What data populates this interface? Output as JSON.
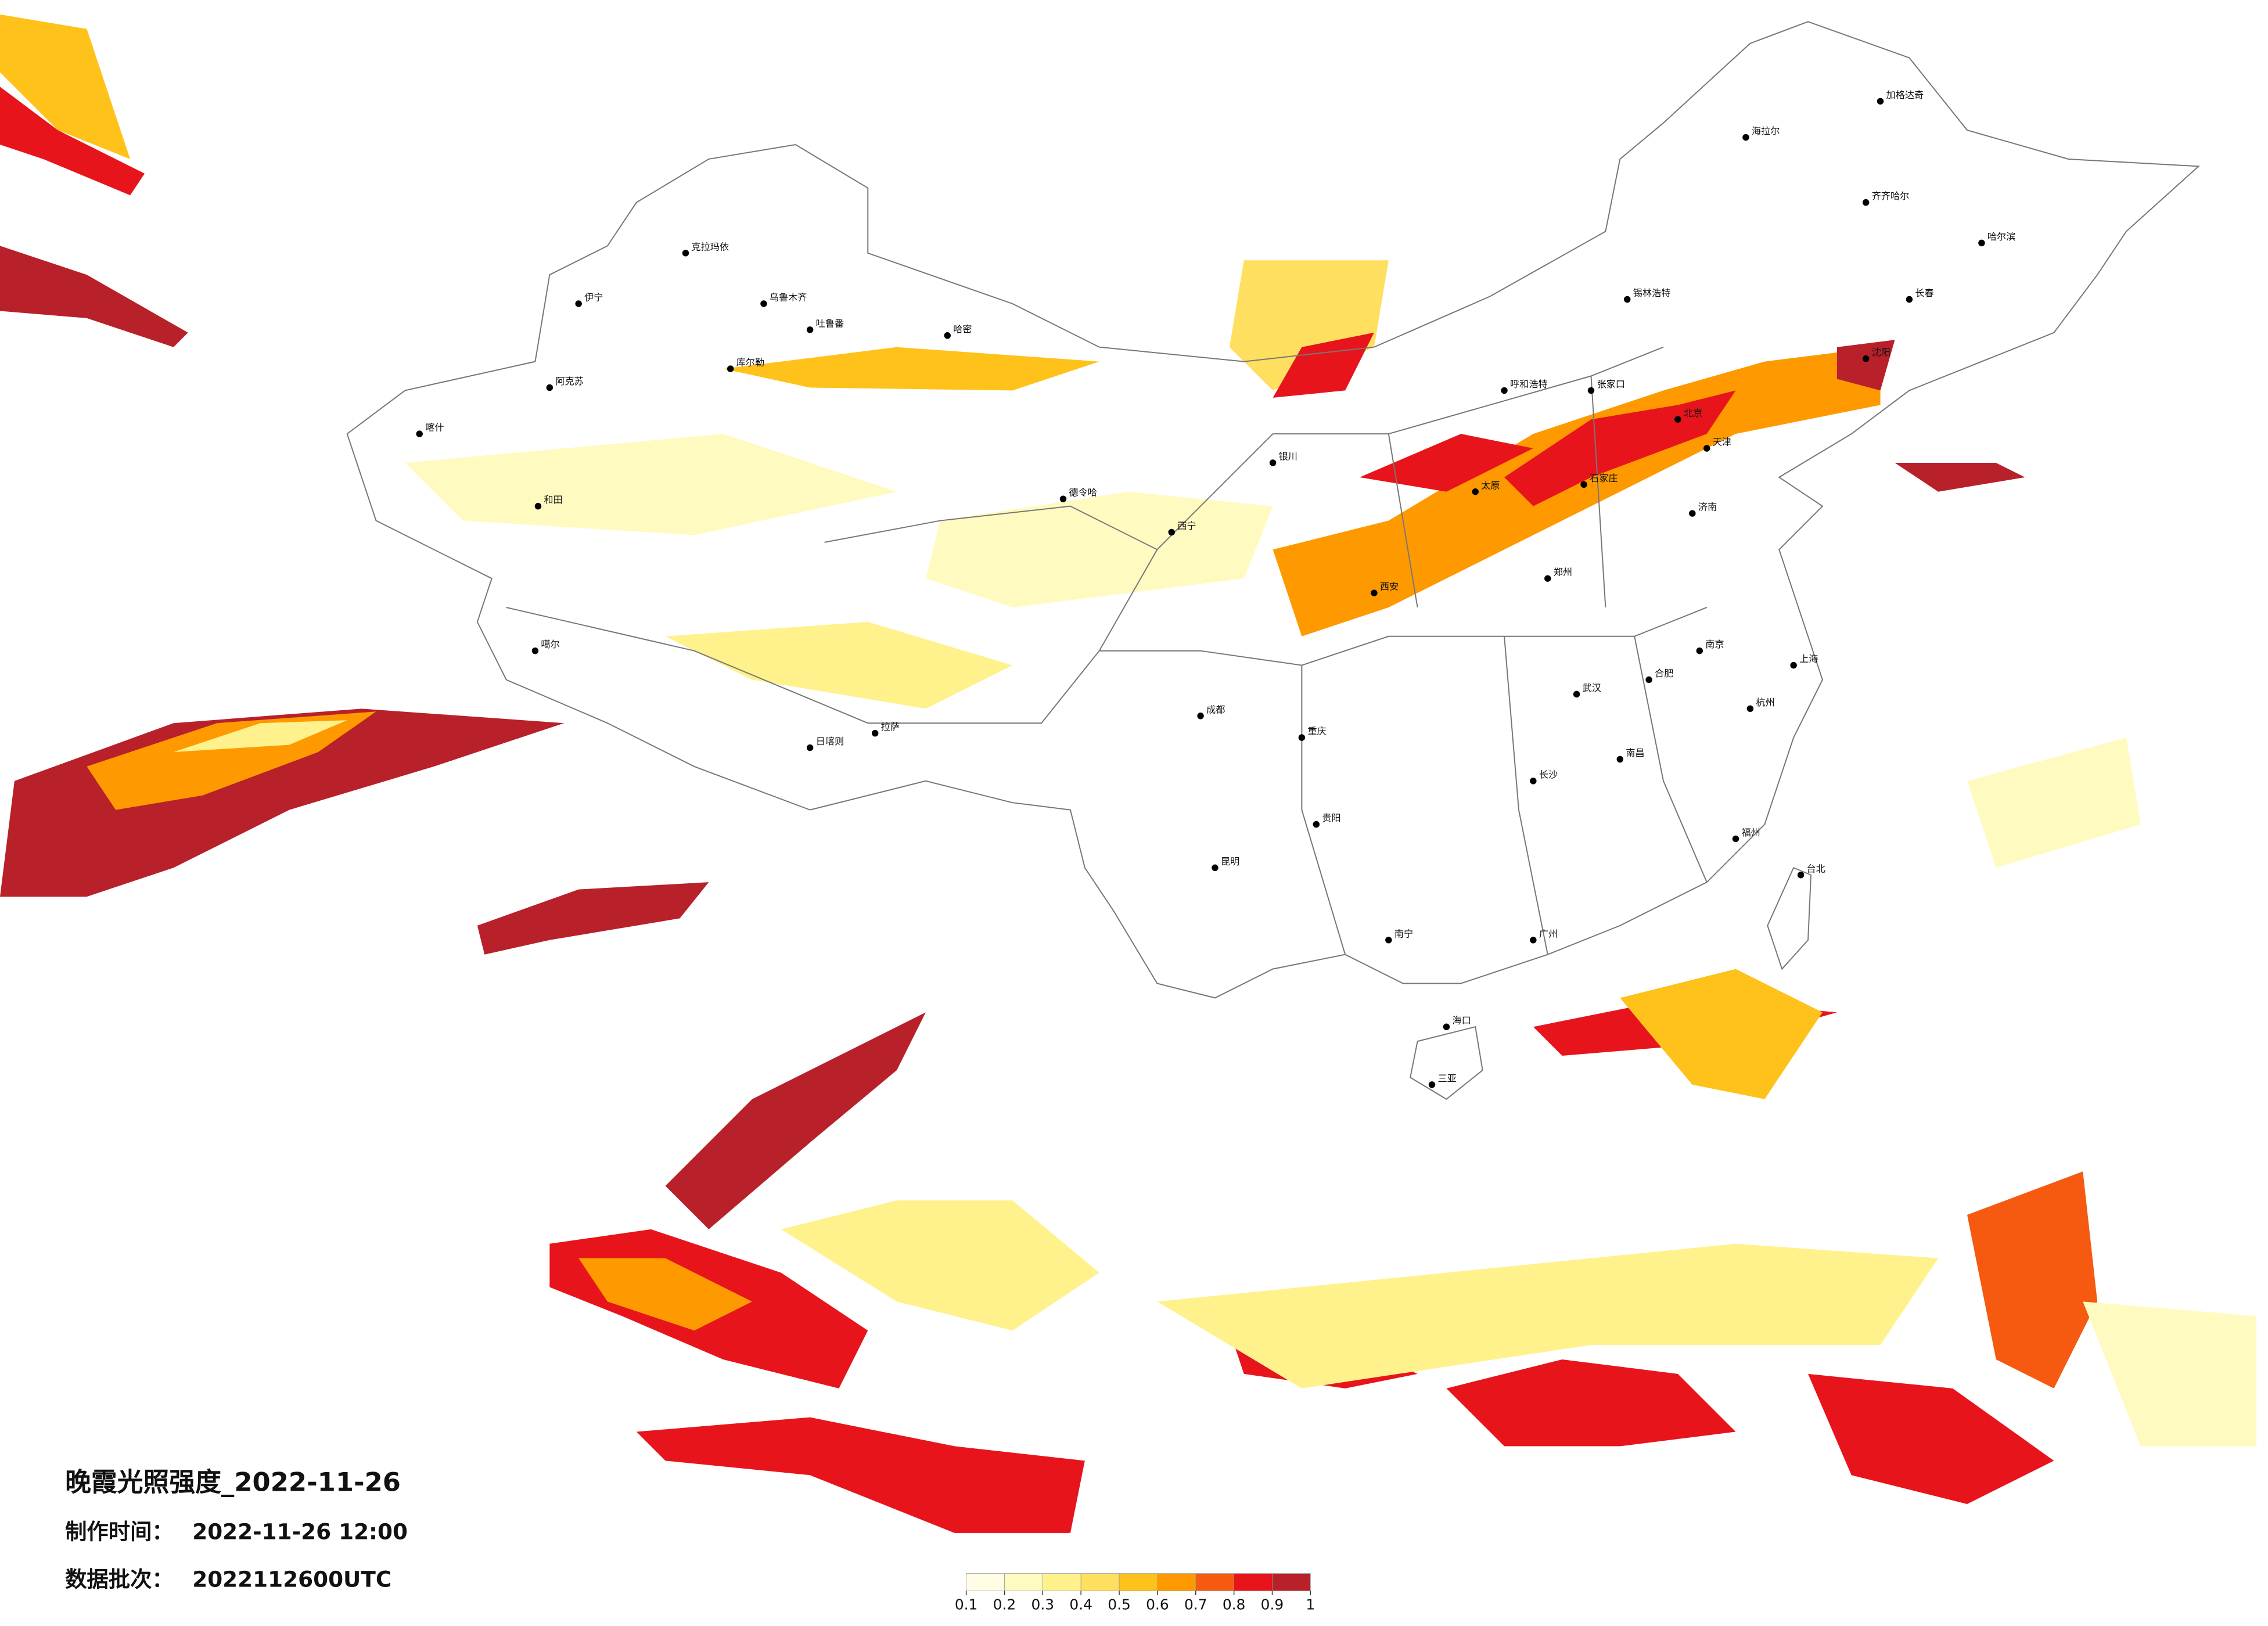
{
  "title": "晚霞光照强度_2022-11-26",
  "made_time": {
    "label": "制作时间：",
    "value": "2022-11-26 12:00"
  },
  "batch": {
    "label": "数据批次：",
    "value": "2022112600UTC"
  },
  "colorbar": {
    "ticks": [
      0.1,
      0.2,
      0.3,
      0.4,
      0.5,
      0.6,
      0.7,
      0.8,
      0.9,
      1
    ],
    "colors": [
      "#fffde6",
      "#fffac0",
      "#fff28c",
      "#ffdf60",
      "#ffc21a",
      "#fe9a00",
      "#f55a10",
      "#e8141c",
      "#b8202a"
    ]
  },
  "cities": [
    "克拉玛依",
    "伊宁",
    "乌鲁木齐",
    "吐鲁番",
    "哈密",
    "库尔勒",
    "阿克苏",
    "喀什",
    "和田",
    "噶尔",
    "日喀则",
    "拉萨",
    "德令哈",
    "西宁",
    "海拉尔",
    "加格达奇",
    "齐齐哈尔",
    "哈尔滨",
    "长春",
    "沈阳",
    "锡林浩特",
    "呼和浩特",
    "张家口",
    "北京",
    "天津",
    "太原",
    "石家庄",
    "济南",
    "郑州",
    "西安",
    "银川",
    "成都",
    "重庆",
    "贵阳",
    "昆明",
    "南宁",
    "广州",
    "长沙",
    "武汉",
    "南昌",
    "杭州",
    "上海",
    "南京",
    "合肥",
    "福州",
    "台北",
    "海口",
    "三亚"
  ]
}
